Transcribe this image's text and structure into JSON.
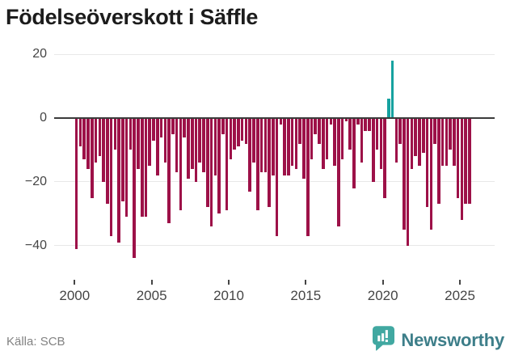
{
  "header": {
    "title": "Födelseöverskott i Säffle"
  },
  "footer": {
    "source": "Källa: SCB",
    "brand": "Newsworthy",
    "logo_icon": "newsworthy-bar-chart-bubble-icon"
  },
  "colors": {
    "bar_negative": "#9d1148",
    "bar_positive": "#16a2a0",
    "grid": "#e8e8e8",
    "zero_line": "#3b3b3b",
    "title": "#1c1c1c",
    "axis_text": "#454545",
    "source_text": "#828282",
    "logo_text": "#3d7e89",
    "logo_icon": "#41a8a1"
  },
  "chart_data": {
    "type": "bar",
    "title": "Födelseöverskott i Säffle",
    "frequency": "quarterly",
    "legend": "none",
    "grid": "horizontal",
    "x_tick_labels": [
      "2000",
      "2005",
      "2010",
      "2015",
      "2020",
      "2025"
    ],
    "y_ticks": [
      20,
      0,
      -20,
      -40
    ],
    "y_tick_labels": [
      "20",
      "0",
      "−20",
      "−40"
    ],
    "ylim": [
      -47,
      22
    ],
    "x_range": [
      "2000 Q1",
      "2025 Q3"
    ],
    "quarters": [
      "2000 Q1",
      "2000 Q2",
      "2000 Q3",
      "2000 Q4",
      "2001 Q1",
      "2001 Q2",
      "2001 Q3",
      "2001 Q4",
      "2002 Q1",
      "2002 Q2",
      "2002 Q3",
      "2002 Q4",
      "2003 Q1",
      "2003 Q2",
      "2003 Q3",
      "2003 Q4",
      "2004 Q1",
      "2004 Q2",
      "2004 Q3",
      "2004 Q4",
      "2005 Q1",
      "2005 Q2",
      "2005 Q3",
      "2005 Q4",
      "2006 Q1",
      "2006 Q2",
      "2006 Q3",
      "2006 Q4",
      "2007 Q1",
      "2007 Q2",
      "2007 Q3",
      "2007 Q4",
      "2008 Q1",
      "2008 Q2",
      "2008 Q3",
      "2008 Q4",
      "2009 Q1",
      "2009 Q2",
      "2009 Q3",
      "2009 Q4",
      "2010 Q1",
      "2010 Q2",
      "2010 Q3",
      "2010 Q4",
      "2011 Q1",
      "2011 Q2",
      "2011 Q3",
      "2011 Q4",
      "2012 Q1",
      "2012 Q2",
      "2012 Q3",
      "2012 Q4",
      "2013 Q1",
      "2013 Q2",
      "2013 Q3",
      "2013 Q4",
      "2014 Q1",
      "2014 Q2",
      "2014 Q3",
      "2014 Q4",
      "2015 Q1",
      "2015 Q2",
      "2015 Q3",
      "2015 Q4",
      "2016 Q1",
      "2016 Q2",
      "2016 Q3",
      "2016 Q4",
      "2017 Q1",
      "2017 Q2",
      "2017 Q3",
      "2017 Q4",
      "2018 Q1",
      "2018 Q2",
      "2018 Q3",
      "2018 Q4",
      "2019 Q1",
      "2019 Q2",
      "2019 Q3",
      "2019 Q4",
      "2020 Q1",
      "2020 Q2",
      "2020 Q3",
      "2020 Q4",
      "2021 Q1",
      "2021 Q2",
      "2021 Q3",
      "2021 Q4",
      "2022 Q1",
      "2022 Q2",
      "2022 Q3",
      "2022 Q4",
      "2023 Q1",
      "2023 Q2",
      "2023 Q3",
      "2023 Q4",
      "2024 Q1",
      "2024 Q2",
      "2024 Q3",
      "2024 Q4",
      "2025 Q1",
      "2025 Q2",
      "2025 Q3"
    ],
    "values": [
      -41,
      -9,
      -13,
      -16,
      -25,
      -14,
      -12,
      -20,
      -27,
      -37,
      -10,
      -39,
      -26,
      -31,
      -10,
      -44,
      -16,
      -31,
      -31,
      -15,
      -7,
      -18,
      -6,
      -14,
      -33,
      -5,
      -17,
      -29,
      -6,
      -19,
      -16,
      -20,
      -14,
      -17,
      -28,
      -34,
      -18,
      -30,
      -5,
      -29,
      -13,
      -10,
      -9,
      -7,
      -8,
      -23,
      -14,
      -29,
      -17,
      -17,
      -28,
      -18,
      -37,
      -2,
      -18,
      -18,
      -15,
      -16,
      -8,
      -19,
      -37,
      -13,
      -5,
      -8,
      -16,
      -13,
      -2,
      -15,
      -34,
      -13,
      -1,
      -10,
      -22,
      -2,
      -14,
      -4,
      -4,
      -20,
      -10,
      -16,
      -25,
      6,
      18,
      -14,
      -8,
      -35,
      -40,
      -16,
      -12,
      -15,
      -11,
      -28,
      -35,
      -8,
      -27,
      -15,
      -15,
      -10,
      -15,
      -25,
      -32,
      -27,
      -27
    ]
  }
}
